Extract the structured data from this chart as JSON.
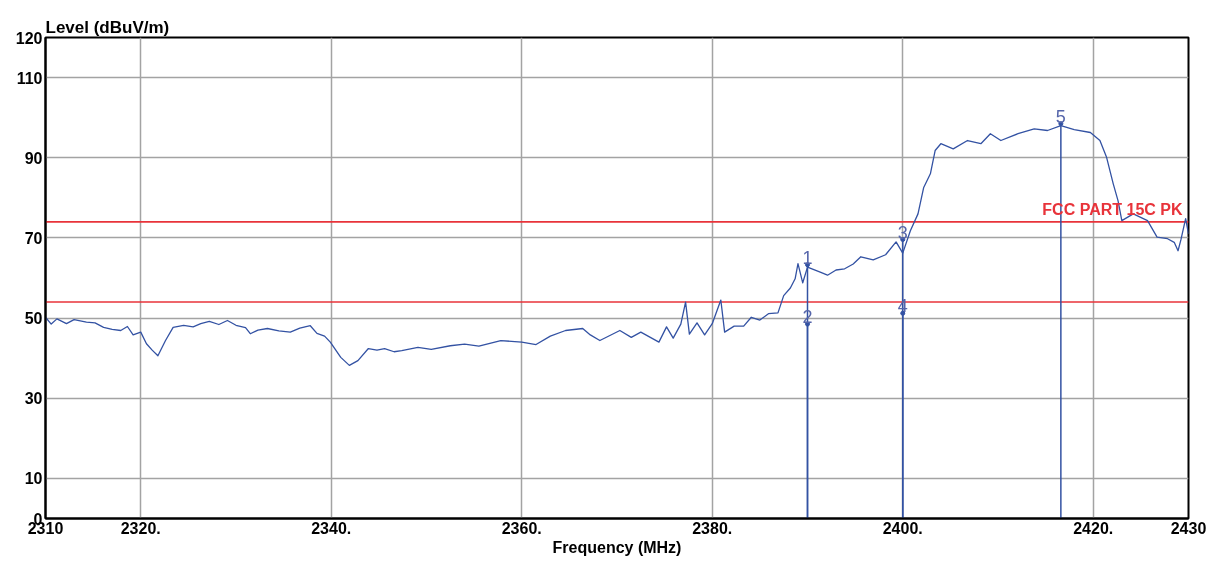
{
  "chart_data": {
    "type": "line",
    "xlabel": "Frequency (MHz)",
    "ylabel": "Level (dBuV/m)",
    "xlim": [
      2310,
      2430
    ],
    "ylim": [
      0,
      120
    ],
    "xticks": [
      2310,
      {
        "value": 2320,
        "label": "2320."
      },
      {
        "value": 2340,
        "label": "2340."
      },
      {
        "value": 2360,
        "label": "2360."
      },
      {
        "value": 2380,
        "label": "2380."
      },
      {
        "value": 2400,
        "label": "2400."
      },
      {
        "value": 2420,
        "label": "2420."
      },
      2430
    ],
    "yticks": [
      0,
      10,
      30,
      50,
      70,
      90,
      110,
      120
    ],
    "grid": true,
    "series": [
      {
        "color": "#3352a3",
        "x": [
          2310.0,
          2310.6,
          2311.2,
          2312.2,
          2313.0,
          2314.3,
          2315.2,
          2316.1,
          2317.0,
          2317.9,
          2318.6,
          2319.2,
          2320.0,
          2320.6,
          2321.2,
          2321.8,
          2322.6,
          2323.4,
          2324.5,
          2325.5,
          2326.3,
          2327.2,
          2328.2,
          2329.1,
          2330.0,
          2331.0,
          2331.5,
          2332.3,
          2333.3,
          2334.5,
          2335.7,
          2336.7,
          2337.8,
          2338.5,
          2339.3,
          2339.9,
          2341.0,
          2341.9,
          2342.8,
          2343.9,
          2344.8,
          2345.6,
          2346.6,
          2347.4,
          2349.1,
          2350.5,
          2352.5,
          2354.0,
          2355.5,
          2357.8,
          2360.0,
          2361.5,
          2363.0,
          2364.6,
          2366.4,
          2367.2,
          2368.2,
          2369.2,
          2370.3,
          2371.5,
          2372.5,
          2373.5,
          2374.4,
          2375.2,
          2375.9,
          2376.7,
          2377.2,
          2377.6,
          2378.4,
          2379.2,
          2380.0,
          2380.9,
          2381.3,
          2382.3,
          2383.3,
          2384.1,
          2385.0,
          2385.9,
          2386.9,
          2387.5,
          2388.2,
          2388.7,
          2389.0,
          2389.5,
          2390.0,
          2391.4,
          2392.1,
          2393.0,
          2393.9,
          2394.8,
          2395.6,
          2396.9,
          2398.2,
          2399.3,
          2400.0,
          2400.8,
          2401.6,
          2402.2,
          2402.9,
          2403.4,
          2404.0,
          2405.3,
          2406.8,
          2408.2,
          2409.2,
          2410.3,
          2412.1,
          2413.8,
          2415.2,
          2416.6,
          2418.0,
          2419.7,
          2420.7,
          2421.4,
          2422.1,
          2422.6,
          2423.0,
          2424.2,
          2425.7,
          2426.7,
          2427.8,
          2428.5,
          2428.9,
          2429.2,
          2429.7,
          2430.0
        ],
        "values": [
          50.2,
          48.5,
          49.8,
          48.6,
          49.6,
          49.0,
          48.8,
          47.7,
          47.2,
          46.9,
          47.9,
          45.8,
          46.5,
          43.6,
          42.0,
          40.6,
          44.4,
          47.7,
          48.2,
          47.8,
          48.6,
          49.2,
          48.4,
          49.4,
          48.2,
          47.6,
          46.1,
          47.0,
          47.4,
          46.8,
          46.5,
          47.5,
          48.1,
          46.2,
          45.5,
          44.0,
          40.2,
          38.2,
          39.4,
          42.4,
          42.0,
          42.4,
          41.6,
          41.9,
          42.7,
          42.2,
          43.1,
          43.5,
          43.0,
          44.4,
          44.0,
          43.4,
          45.5,
          46.9,
          47.4,
          45.8,
          44.4,
          45.6,
          46.9,
          45.2,
          46.5,
          45.2,
          44.0,
          47.8,
          45.0,
          48.5,
          54.0,
          46.0,
          48.8,
          45.8,
          48.6,
          54.5,
          46.5,
          48.0,
          48.0,
          50.2,
          49.5,
          51.1,
          51.3,
          55.6,
          57.5,
          59.8,
          63.6,
          58.8,
          62.7,
          61.4,
          60.7,
          62.0,
          62.3,
          63.5,
          65.3,
          64.5,
          65.8,
          69.0,
          66.2,
          71.8,
          76.0,
          82.6,
          86.0,
          91.8,
          93.5,
          92.2,
          94.3,
          93.5,
          96.0,
          94.3,
          96.0,
          97.2,
          96.8,
          98.0,
          97.0,
          96.3,
          94.3,
          90.1,
          83.5,
          79.3,
          74.3,
          76.0,
          74.3,
          70.2,
          69.8,
          68.9,
          66.8,
          69.5,
          74.8,
          71.0
        ]
      },
      {
        "type": "lollipop",
        "color": "#3352a3",
        "marker": "circle",
        "x": [
          2390,
          2390,
          2400,
          2400,
          2416.6
        ],
        "values": [
          63.3,
          48.5,
          69.6,
          51.2,
          98.5
        ]
      }
    ],
    "ref_lines": [
      {
        "axis": "y",
        "value": 74,
        "label": "FCC PART 15C PK",
        "color": "#e8333a"
      },
      {
        "axis": "y",
        "value": 54,
        "color": "#e8333a"
      }
    ],
    "annotations": [
      {
        "text": "1",
        "x": 2390,
        "y": 63.3
      },
      {
        "text": "2",
        "x": 2390,
        "y": 48.5
      },
      {
        "text": "3",
        "x": 2400,
        "y": 69.6
      },
      {
        "text": "4",
        "x": 2400,
        "y": 51.2
      },
      {
        "text": "5",
        "x": 2416.6,
        "y": 98.5
      }
    ]
  }
}
